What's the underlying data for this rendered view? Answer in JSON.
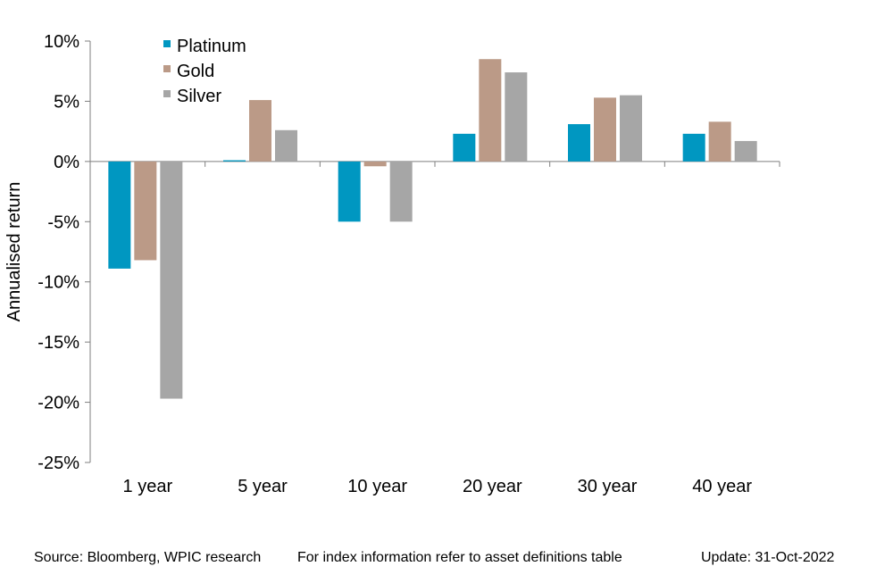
{
  "chart_data": {
    "type": "bar",
    "categories": [
      "1 year",
      "5 year",
      "10 year",
      "20 year",
      "30 year",
      "40 year"
    ],
    "series": [
      {
        "name": "Platinum",
        "color": "#0097C1",
        "values": [
          -8.9,
          0.1,
          -5.0,
          2.3,
          3.1,
          2.3
        ]
      },
      {
        "name": "Gold",
        "color": "#BB9A87",
        "values": [
          -8.2,
          5.1,
          -0.4,
          8.5,
          5.3,
          3.3
        ]
      },
      {
        "name": "Silver",
        "color": "#A6A6A6",
        "values": [
          -19.7,
          2.6,
          -5.0,
          7.4,
          5.5,
          1.7
        ]
      }
    ],
    "ylabel": "Annualised return",
    "ylim": [
      -25,
      10
    ],
    "yticks": [
      10,
      5,
      0,
      -5,
      -10,
      -15,
      -20,
      -25
    ],
    "ytick_labels": [
      "10%",
      "5%",
      "0%",
      "-5%",
      "-10%",
      "-15%",
      "-20%",
      "-25%"
    ],
    "grid": false,
    "legend_position": "top-left"
  },
  "footer": {
    "source": "Source: Bloomberg, WPIC research",
    "note": "For index information refer to asset definitions table",
    "update": "Update: 31-Oct-2022"
  }
}
